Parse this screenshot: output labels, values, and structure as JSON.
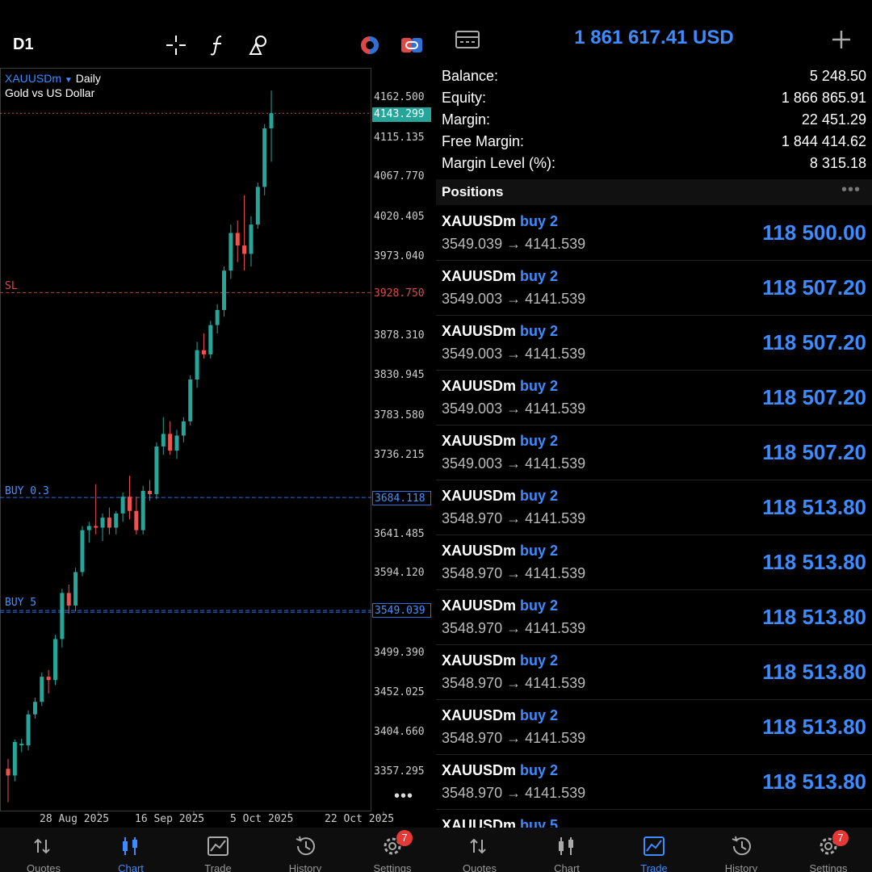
{
  "left_panel": {
    "timeframe": "D1",
    "symbol": "XAUUSDm",
    "period": "Daily",
    "description": "Gold vs US Dollar",
    "more": "•••",
    "y_ticks": [
      "4162.500",
      "4115.135",
      "4067.770",
      "4020.405",
      "3973.040",
      "3878.310",
      "3830.945",
      "3783.580",
      "3736.215",
      "3641.485",
      "3594.120",
      "3499.390",
      "3452.025",
      "3404.660",
      "3357.295"
    ],
    "current_price": "4143.299",
    "sl_label": "SL",
    "sl_price": "3928.750",
    "buy_lines": [
      {
        "label": "BUY 0.3",
        "price": "3684.118"
      },
      {
        "label": "BUY 5",
        "price": "3549.039"
      }
    ],
    "x_ticks": [
      "28 Aug 2025",
      "16 Sep 2025",
      "5 Oct 2025",
      "22 Oct 2025"
    ],
    "colors": {
      "bull": "#26a69a",
      "bear": "#ef5350",
      "buy": "#2f6fd6",
      "sl": "#c0392b"
    }
  },
  "right_panel": {
    "total": "1 861 617.41 USD",
    "account": [
      {
        "label": "Balance:",
        "value": "5 248.50"
      },
      {
        "label": "Equity:",
        "value": "1 866 865.91"
      },
      {
        "label": "Margin:",
        "value": "22 451.29"
      },
      {
        "label": "Free Margin:",
        "value": "1 844 414.62"
      },
      {
        "label": "Margin Level (%):",
        "value": "8 315.18"
      }
    ],
    "positions_title": "Positions",
    "positions_more": "•••",
    "positions": [
      {
        "symbol": "XAUUSDm",
        "dir": "buy 2",
        "prices": "3549.039 → 4141.539",
        "pl": "118 500.00"
      },
      {
        "symbol": "XAUUSDm",
        "dir": "buy 2",
        "prices": "3549.003 → 4141.539",
        "pl": "118 507.20"
      },
      {
        "symbol": "XAUUSDm",
        "dir": "buy 2",
        "prices": "3549.003 → 4141.539",
        "pl": "118 507.20"
      },
      {
        "symbol": "XAUUSDm",
        "dir": "buy 2",
        "prices": "3549.003 → 4141.539",
        "pl": "118 507.20"
      },
      {
        "symbol": "XAUUSDm",
        "dir": "buy 2",
        "prices": "3549.003 → 4141.539",
        "pl": "118 507.20"
      },
      {
        "symbol": "XAUUSDm",
        "dir": "buy 2",
        "prices": "3548.970 → 4141.539",
        "pl": "118 513.80"
      },
      {
        "symbol": "XAUUSDm",
        "dir": "buy 2",
        "prices": "3548.970 → 4141.539",
        "pl": "118 513.80"
      },
      {
        "symbol": "XAUUSDm",
        "dir": "buy 2",
        "prices": "3548.970 → 4141.539",
        "pl": "118 513.80"
      },
      {
        "symbol": "XAUUSDm",
        "dir": "buy 2",
        "prices": "3548.970 → 4141.539",
        "pl": "118 513.80"
      },
      {
        "symbol": "XAUUSDm",
        "dir": "buy 2",
        "prices": "3548.970 → 4141.539",
        "pl": "118 513.80"
      },
      {
        "symbol": "XAUUSDm",
        "dir": "buy 2",
        "prices": "3548.970 → 4141.539",
        "pl": "118 513.80"
      },
      {
        "symbol": "XAUUSDm",
        "dir": "buy 5",
        "prices": "",
        "pl": ""
      }
    ]
  },
  "tabs_left": [
    {
      "label": "Quotes",
      "icon": "quotes-icon"
    },
    {
      "label": "Chart",
      "icon": "chart-icon",
      "active": true
    },
    {
      "label": "Trade",
      "icon": "trade-icon"
    },
    {
      "label": "History",
      "icon": "history-icon"
    },
    {
      "label": "Settings",
      "icon": "settings-icon",
      "badge": "7"
    }
  ],
  "tabs_right": [
    {
      "label": "Quotes",
      "icon": "quotes-icon"
    },
    {
      "label": "Chart",
      "icon": "chart-icon"
    },
    {
      "label": "Trade",
      "icon": "trade-icon",
      "active": true
    },
    {
      "label": "History",
      "icon": "history-icon"
    },
    {
      "label": "Settings",
      "icon": "settings-icon",
      "badge": "7"
    }
  ],
  "chart_data": {
    "type": "candlestick",
    "symbol": "XAUUSDm",
    "period": "Daily",
    "ylim": [
      3320,
      4190
    ],
    "candles": [
      [
        3360,
        3372,
        3320,
        3352
      ],
      [
        3352,
        3395,
        3345,
        3392
      ],
      [
        3388,
        3396,
        3380,
        3390
      ],
      [
        3388,
        3430,
        3382,
        3425
      ],
      [
        3425,
        3445,
        3420,
        3440
      ],
      [
        3440,
        3475,
        3435,
        3470
      ],
      [
        3470,
        3478,
        3450,
        3466
      ],
      [
        3466,
        3520,
        3460,
        3515
      ],
      [
        3515,
        3575,
        3505,
        3570
      ],
      [
        3570,
        3580,
        3545,
        3555
      ],
      [
        3555,
        3600,
        3548,
        3595
      ],
      [
        3595,
        3650,
        3590,
        3645
      ],
      [
        3645,
        3655,
        3630,
        3650
      ],
      [
        3650,
        3700,
        3640,
        3648
      ],
      [
        3648,
        3665,
        3632,
        3660
      ],
      [
        3660,
        3672,
        3640,
        3648
      ],
      [
        3648,
        3668,
        3640,
        3665
      ],
      [
        3665,
        3690,
        3655,
        3685
      ],
      [
        3685,
        3710,
        3658,
        3668
      ],
      [
        3668,
        3685,
        3640,
        3645
      ],
      [
        3645,
        3698,
        3640,
        3692
      ],
      [
        3692,
        3705,
        3680,
        3688
      ],
      [
        3688,
        3750,
        3682,
        3745
      ],
      [
        3745,
        3780,
        3735,
        3760
      ],
      [
        3760,
        3775,
        3735,
        3740
      ],
      [
        3740,
        3765,
        3730,
        3758
      ],
      [
        3758,
        3780,
        3750,
        3775
      ],
      [
        3775,
        3830,
        3770,
        3825
      ],
      [
        3825,
        3870,
        3815,
        3860
      ],
      [
        3860,
        3880,
        3850,
        3855
      ],
      [
        3855,
        3895,
        3850,
        3890
      ],
      [
        3890,
        3915,
        3880,
        3908
      ],
      [
        3908,
        3960,
        3900,
        3955
      ],
      [
        3955,
        4010,
        3945,
        4000
      ],
      [
        4000,
        4015,
        3965,
        3985
      ],
      [
        3985,
        4045,
        3955,
        3975
      ],
      [
        3975,
        4020,
        3960,
        4010
      ],
      [
        4010,
        4060,
        4005,
        4055
      ],
      [
        4055,
        4130,
        4045,
        4125
      ],
      [
        4125,
        4170,
        4085,
        4143
      ]
    ],
    "levels": [
      {
        "label": "SL",
        "price": 3928.75
      },
      {
        "label": "BUY 0.3",
        "price": 3684.118
      },
      {
        "label": "BUY 5",
        "price": 3549.039
      }
    ]
  }
}
